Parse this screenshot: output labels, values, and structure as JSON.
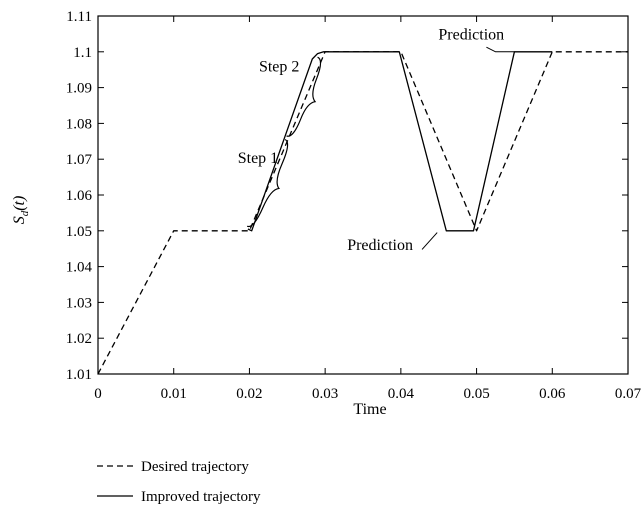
{
  "chart_data": {
    "type": "line",
    "xlabel": "Time",
    "ylabel": "S_d(t)",
    "xlim": [
      0,
      0.07
    ],
    "ylim": [
      1.01,
      1.11
    ],
    "xticks": [
      "0",
      "0.01",
      "0.02",
      "0.03",
      "0.04",
      "0.05",
      "0.06",
      "0.07"
    ],
    "yticks": [
      "1.01",
      "1.02",
      "1.03",
      "1.04",
      "1.05",
      "1.06",
      "1.07",
      "1.08",
      "1.09",
      "1.1",
      "1.11"
    ],
    "grid": false,
    "legend_position": "bottom-left outside",
    "series": [
      {
        "name": "Desired trajectory",
        "style": "dashed",
        "color": "#000000",
        "x": [
          0,
          0.01,
          0.02,
          0.03,
          0.04,
          0.05,
          0.06,
          0.07
        ],
        "y": [
          1.01,
          1.05,
          1.05,
          1.1,
          1.1,
          1.05,
          1.1,
          1.1
        ]
      },
      {
        "name": "Improved trajectory",
        "style": "solid",
        "color": "#000000",
        "x": [
          0.0198,
          0.0203,
          0.0283,
          0.029,
          0.0298,
          0.0398,
          0.046,
          0.0496,
          0.055,
          0.06
        ],
        "y": [
          1.0505,
          1.05,
          1.098,
          1.0995,
          1.1,
          1.1,
          1.05,
          1.05,
          1.1,
          1.1
        ]
      }
    ],
    "annotations": [
      {
        "text": "Step 2",
        "x": 0.0266,
        "y": 1.0945
      },
      {
        "text": "Step 1",
        "x": 0.0238,
        "y": 1.069
      },
      {
        "text": "Prediction",
        "x": 0.0493,
        "y": 1.1035
      },
      {
        "text": "Prediction",
        "x": 0.0416,
        "y": 1.0446
      }
    ]
  }
}
